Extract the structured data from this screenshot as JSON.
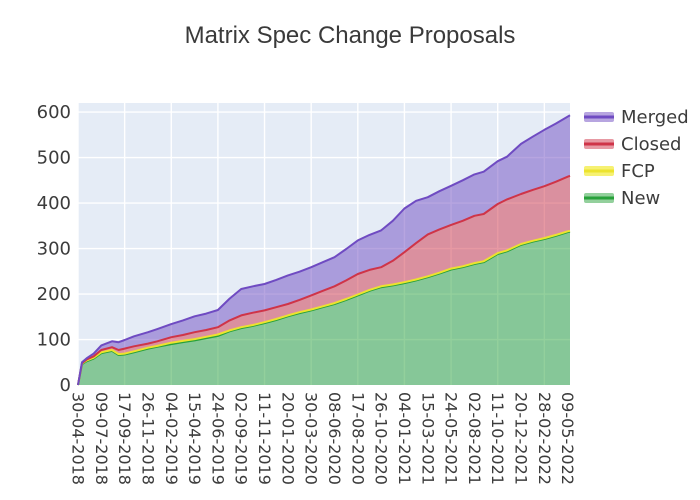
{
  "title": "Matrix Spec Change Proposals",
  "colors": {
    "plot_bg": "#e5ecf6",
    "grid": "#ffffff",
    "tick_text": "#3c3c3c",
    "title_text": "#3a3a3a",
    "page_bg": "#ffffff"
  },
  "legend": {
    "position": "top-right",
    "items": [
      {
        "label": "Merged",
        "key": "merged"
      },
      {
        "label": "Closed",
        "key": "closed"
      },
      {
        "label": "FCP",
        "key": "fcp"
      },
      {
        "label": "New",
        "key": "new"
      }
    ]
  },
  "chart_data": {
    "type": "area",
    "stacked": true,
    "title": "Matrix Spec Change Proposals",
    "xlabel": "",
    "ylabel": "",
    "x_start": "2018-04-30",
    "x_end": "2022-05-16",
    "ylim": [
      0,
      620
    ],
    "y_ticks": [
      0,
      100,
      200,
      300,
      400,
      500,
      600
    ],
    "x_tick_labels": [
      "30-04-2018",
      "09-07-2018",
      "17-09-2018",
      "26-11-2018",
      "04-02-2019",
      "15-04-2019",
      "24-06-2019",
      "02-09-2019",
      "11-11-2019",
      "20-01-2020",
      "30-03-2020",
      "08-06-2020",
      "17-08-2020",
      "26-10-2020",
      "04-01-2021",
      "15-03-2021",
      "24-05-2021",
      "02-08-2021",
      "11-10-2021",
      "20-12-2021",
      "28-02-2022",
      "09-05-2022"
    ],
    "grid": {
      "horizontal": true,
      "vertical": "every-other-tick"
    },
    "legend_position": "top-right",
    "stack_order": [
      "new",
      "fcp",
      "closed",
      "merged"
    ],
    "series": {
      "new": {
        "name": "New",
        "line": "#27a13a",
        "fill": "rgba(39,161,58,0.5)"
      },
      "fcp": {
        "name": "FCP",
        "line": "#ece32e",
        "fill": "rgba(240,232,20,0.6)"
      },
      "closed": {
        "name": "Closed",
        "line": "#cf3448",
        "fill": "rgba(207,52,72,0.5)"
      },
      "merged": {
        "name": "Merged",
        "line": "#6f4bc2",
        "fill": "rgba(111,75,194,0.5)"
      }
    },
    "samples": [
      {
        "date": "2018-04-30",
        "new": 0,
        "fcp": 0,
        "closed": 0,
        "merged": 0
      },
      {
        "date": "2018-05-12",
        "new": 46,
        "fcp": 1,
        "closed": 1,
        "merged": 2
      },
      {
        "date": "2018-05-26",
        "new": 52,
        "fcp": 2,
        "closed": 2,
        "merged": 3
      },
      {
        "date": "2018-06-16",
        "new": 58,
        "fcp": 2,
        "closed": 3,
        "merged": 6
      },
      {
        "date": "2018-07-09",
        "new": 70,
        "fcp": 2,
        "closed": 5,
        "merged": 10
      },
      {
        "date": "2018-08-10",
        "new": 75,
        "fcp": 2,
        "closed": 6,
        "merged": 13
      },
      {
        "date": "2018-08-30",
        "new": 66,
        "fcp": 2,
        "closed": 9,
        "merged": 17
      },
      {
        "date": "2018-09-17",
        "new": 67,
        "fcp": 2,
        "closed": 11,
        "merged": 19
      },
      {
        "date": "2018-10-15",
        "new": 72,
        "fcp": 2,
        "closed": 11,
        "merged": 22
      },
      {
        "date": "2018-11-26",
        "new": 80,
        "fcp": 2,
        "closed": 9,
        "merged": 25
      },
      {
        "date": "2018-12-24",
        "new": 84,
        "fcp": 2,
        "closed": 10,
        "merged": 27
      },
      {
        "date": "2019-02-04",
        "new": 90,
        "fcp": 3,
        "closed": 12,
        "merged": 29
      },
      {
        "date": "2019-03-11",
        "new": 94,
        "fcp": 3,
        "closed": 13,
        "merged": 32
      },
      {
        "date": "2019-04-15",
        "new": 98,
        "fcp": 3,
        "closed": 15,
        "merged": 35
      },
      {
        "date": "2019-05-20",
        "new": 103,
        "fcp": 3,
        "closed": 15,
        "merged": 36
      },
      {
        "date": "2019-06-24",
        "new": 108,
        "fcp": 3,
        "closed": 16,
        "merged": 38
      },
      {
        "date": "2019-07-29",
        "new": 118,
        "fcp": 2,
        "closed": 22,
        "merged": 48
      },
      {
        "date": "2019-09-02",
        "new": 125,
        "fcp": 2,
        "closed": 26,
        "merged": 58
      },
      {
        "date": "2019-10-07",
        "new": 130,
        "fcp": 2,
        "closed": 27,
        "merged": 58
      },
      {
        "date": "2019-11-11",
        "new": 136,
        "fcp": 2,
        "closed": 26,
        "merged": 58
      },
      {
        "date": "2019-12-16",
        "new": 143,
        "fcp": 2,
        "closed": 26,
        "merged": 60
      },
      {
        "date": "2020-01-20",
        "new": 151,
        "fcp": 2,
        "closed": 25,
        "merged": 63
      },
      {
        "date": "2020-02-24",
        "new": 158,
        "fcp": 2,
        "closed": 27,
        "merged": 62
      },
      {
        "date": "2020-03-30",
        "new": 164,
        "fcp": 2,
        "closed": 31,
        "merged": 62
      },
      {
        "date": "2020-05-04",
        "new": 171,
        "fcp": 2,
        "closed": 34,
        "merged": 63
      },
      {
        "date": "2020-06-08",
        "new": 178,
        "fcp": 2,
        "closed": 37,
        "merged": 64
      },
      {
        "date": "2020-07-13",
        "new": 187,
        "fcp": 2,
        "closed": 41,
        "merged": 69
      },
      {
        "date": "2020-08-17",
        "new": 197,
        "fcp": 2,
        "closed": 45,
        "merged": 74
      },
      {
        "date": "2020-09-21",
        "new": 207,
        "fcp": 2,
        "closed": 44,
        "merged": 77
      },
      {
        "date": "2020-10-26",
        "new": 215,
        "fcp": 2,
        "closed": 42,
        "merged": 81
      },
      {
        "date": "2020-11-30",
        "new": 219,
        "fcp": 2,
        "closed": 52,
        "merged": 88
      },
      {
        "date": "2021-01-04",
        "new": 224,
        "fcp": 2,
        "closed": 66,
        "merged": 96
      },
      {
        "date": "2021-02-08",
        "new": 230,
        "fcp": 2,
        "closed": 80,
        "merged": 93
      },
      {
        "date": "2021-03-15",
        "new": 237,
        "fcp": 2,
        "closed": 92,
        "merged": 82
      },
      {
        "date": "2021-04-19",
        "new": 245,
        "fcp": 2,
        "closed": 95,
        "merged": 84
      },
      {
        "date": "2021-05-24",
        "new": 254,
        "fcp": 2,
        "closed": 96,
        "merged": 86
      },
      {
        "date": "2021-06-28",
        "new": 259,
        "fcp": 2,
        "closed": 100,
        "merged": 89
      },
      {
        "date": "2021-08-02",
        "new": 266,
        "fcp": 2,
        "closed": 104,
        "merged": 91
      },
      {
        "date": "2021-08-30",
        "new": 270,
        "fcp": 2,
        "closed": 104,
        "merged": 93
      },
      {
        "date": "2021-10-11",
        "new": 288,
        "fcp": 2,
        "closed": 108,
        "merged": 94
      },
      {
        "date": "2021-11-08",
        "new": 294,
        "fcp": 2,
        "closed": 112,
        "merged": 94
      },
      {
        "date": "2021-12-20",
        "new": 308,
        "fcp": 2,
        "closed": 110,
        "merged": 110
      },
      {
        "date": "2022-01-24",
        "new": 315,
        "fcp": 2,
        "closed": 112,
        "merged": 117
      },
      {
        "date": "2022-02-28",
        "new": 321,
        "fcp": 2,
        "closed": 114,
        "merged": 124
      },
      {
        "date": "2022-04-04",
        "new": 328,
        "fcp": 2,
        "closed": 117,
        "merged": 128
      },
      {
        "date": "2022-05-09",
        "new": 336,
        "fcp": 2,
        "closed": 120,
        "merged": 132
      },
      {
        "date": "2022-05-16",
        "new": 337,
        "fcp": 2,
        "closed": 121,
        "merged": 133
      }
    ]
  }
}
